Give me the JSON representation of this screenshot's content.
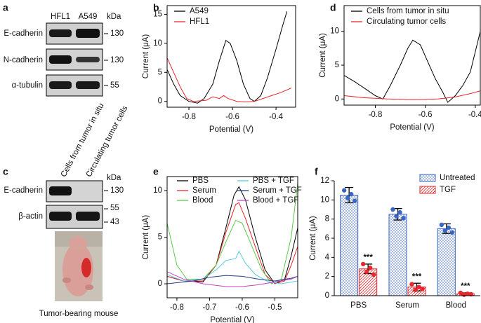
{
  "panel_labels": [
    "a",
    "b",
    "c",
    "d",
    "e",
    "f"
  ],
  "blot_a": {
    "lanes": [
      "HFL1",
      "A549"
    ],
    "unit": "kDa",
    "rows": [
      {
        "label": "E-cadherin",
        "kda": "130"
      },
      {
        "label": "N-cadherin",
        "kda": "130"
      },
      {
        "label": "α-tubulin",
        "kda": "55"
      }
    ]
  },
  "blot_c": {
    "lanes": [
      "Cells from tumor in situ",
      "Circulating tumor cells"
    ],
    "unit": "kDa",
    "rows": [
      {
        "label": "E-cadherin",
        "kda": [
          "130"
        ]
      },
      {
        "label": "β-actin",
        "kda": [
          "55",
          "43"
        ]
      }
    ],
    "caption": "Tumor-bearing mouse"
  },
  "chart_data": [
    {
      "type": "line",
      "x_label": "Potential (V)",
      "y_label": "Current (μA)",
      "xlim": [
        -0.9,
        -0.31
      ],
      "xticks": [
        -0.8,
        -0.6,
        -0.4
      ],
      "ylim": [
        -1,
        16.5
      ],
      "yticks": [
        0,
        5,
        10,
        15
      ],
      "legend": "top-left",
      "series": [
        {
          "name": "A549",
          "color": "#000000",
          "x": [
            -0.9,
            -0.87,
            -0.84,
            -0.8,
            -0.76,
            -0.73,
            -0.69,
            -0.66,
            -0.63,
            -0.61,
            -0.58,
            -0.55,
            -0.52,
            -0.5,
            -0.47,
            -0.44,
            -0.4,
            -0.37,
            -0.35
          ],
          "values": [
            5.5,
            3,
            1,
            0,
            -0.3,
            0.5,
            3,
            7,
            10.5,
            10,
            7,
            3,
            0.5,
            0,
            1,
            4,
            9,
            13,
            15.5
          ]
        },
        {
          "name": "HFL1",
          "color": "#e8262b",
          "x": [
            -0.9,
            -0.87,
            -0.84,
            -0.81,
            -0.78,
            -0.72,
            -0.69,
            -0.66,
            -0.64,
            -0.62,
            -0.58,
            -0.54,
            -0.5,
            -0.46,
            -0.42,
            -0.38,
            -0.33
          ],
          "values": [
            7.5,
            5,
            2.5,
            0.5,
            0,
            0.2,
            0.8,
            0.5,
            1,
            0.5,
            0,
            -0.1,
            0,
            0.5,
            1,
            1.5,
            2.3
          ]
        }
      ]
    },
    {
      "type": "line",
      "x_label": "Potential (V)",
      "y_label": "Current (μA)",
      "xlim": [
        -0.925,
        -0.38
      ],
      "xticks": [
        -0.8,
        -0.6,
        -0.4
      ],
      "ylim": [
        -0.9,
        13.8
      ],
      "yticks": [
        0,
        5,
        10
      ],
      "legend": "top-left",
      "series": [
        {
          "name": "Cells from tumor in situ",
          "color": "#000000",
          "x": [
            -0.925,
            -0.88,
            -0.84,
            -0.8,
            -0.77,
            -0.74,
            -0.7,
            -0.67,
            -0.65,
            -0.62,
            -0.59,
            -0.56,
            -0.53,
            -0.51,
            -0.48,
            -0.45,
            -0.42,
            -0.4,
            -0.38
          ],
          "values": [
            3.5,
            2.5,
            1.5,
            0.5,
            0,
            2,
            5,
            7.5,
            8.7,
            8,
            5.5,
            3,
            1,
            -0.5,
            0.5,
            2,
            4,
            7,
            10
          ]
        },
        {
          "name": "Circulating tumor cells",
          "color": "#e8262b",
          "x": [
            -0.925,
            -0.85,
            -0.75,
            -0.65,
            -0.55,
            -0.48,
            -0.42,
            -0.38
          ],
          "values": [
            0.5,
            0.2,
            0,
            -0.1,
            0,
            0.3,
            0.8,
            1.2
          ]
        }
      ]
    },
    {
      "type": "line",
      "x_label": "Potential (V)",
      "y_label": "Current (μA)",
      "xlim": [
        -0.83,
        -0.43
      ],
      "xticks": [
        -0.8,
        -0.7,
        -0.6,
        -0.5
      ],
      "ylim": [
        -1.5,
        11.5
      ],
      "yticks": [
        0,
        5,
        10
      ],
      "legend": "top-two-columns",
      "series": [
        {
          "name": "PBS",
          "color": "#000000",
          "x": [
            -0.83,
            -0.78,
            -0.72,
            -0.68,
            -0.65,
            -0.625,
            -0.61,
            -0.59,
            -0.56,
            -0.53,
            -0.5,
            -0.47,
            -0.45,
            -0.43
          ],
          "values": [
            0.8,
            0.3,
            0.2,
            2,
            6,
            9.5,
            10.4,
            9,
            5,
            1.5,
            0,
            0.5,
            3,
            6
          ]
        },
        {
          "name": "Serum",
          "color": "#e8262b",
          "x": [
            -0.83,
            -0.78,
            -0.72,
            -0.68,
            -0.65,
            -0.62,
            -0.61,
            -0.59,
            -0.56,
            -0.53,
            -0.5,
            -0.47,
            -0.45,
            -0.43
          ],
          "values": [
            0.8,
            0.3,
            0.3,
            2,
            5.5,
            8.5,
            8.7,
            7,
            4,
            1,
            0,
            0.3,
            2,
            4
          ]
        },
        {
          "name": "Blood",
          "color": "#5cc84a",
          "x": [
            -0.83,
            -0.8,
            -0.77,
            -0.72,
            -0.68,
            -0.65,
            -0.62,
            -0.6,
            -0.57,
            -0.54,
            -0.51,
            -0.48,
            -0.45,
            -0.43
          ],
          "values": [
            6.5,
            2,
            0.5,
            0.5,
            2,
            4.5,
            6.8,
            6.5,
            4,
            1.5,
            0,
            0.5,
            5,
            10.8
          ]
        },
        {
          "name": "PBS + TGF",
          "color": "#5bc8e0",
          "x": [
            -0.83,
            -0.78,
            -0.72,
            -0.68,
            -0.65,
            -0.62,
            -0.61,
            -0.59,
            -0.56,
            -0.52,
            -0.48,
            -0.43
          ],
          "values": [
            1,
            0.3,
            0.5,
            1.5,
            2.5,
            2.7,
            3.5,
            2.2,
            1,
            0.2,
            0,
            0.3
          ]
        },
        {
          "name": "Serum + TGF",
          "color": "#233c8c",
          "x": [
            -0.83,
            -0.75,
            -0.7,
            -0.65,
            -0.6,
            -0.55,
            -0.5,
            -0.45,
            -0.43
          ],
          "values": [
            0,
            0.3,
            0.7,
            0.9,
            0.8,
            0.5,
            0.3,
            0.6,
            0.8
          ]
        },
        {
          "name": "Blood + TGF",
          "color": "#c043c0",
          "x": [
            -0.83,
            -0.78,
            -0.72,
            -0.65,
            -0.6,
            -0.55,
            -0.5,
            -0.45,
            -0.43
          ],
          "values": [
            1.3,
            0.5,
            0,
            -0.3,
            -0.3,
            -0.1,
            0.2,
            0.5,
            0.8
          ]
        }
      ]
    },
    {
      "type": "bar",
      "y_label": "Current (μA)",
      "categories": [
        "PBS",
        "Serum",
        "Blood"
      ],
      "ylim": [
        0,
        12
      ],
      "yticks": [
        0,
        2,
        4,
        6,
        8,
        10,
        12
      ],
      "legend": "top-right",
      "series": [
        {
          "name": "Untreated",
          "color": "#3a66c0",
          "values": [
            10.5,
            8.5,
            7.0
          ],
          "errors": [
            0.8,
            0.6,
            0.5
          ],
          "points": [
            [
              11.0,
              10.2,
              10.6,
              9.9
            ],
            [
              9.0,
              8.3,
              8.7,
              8.1
            ],
            [
              7.4,
              6.8,
              7.1,
              6.6
            ]
          ]
        },
        {
          "name": "TGF",
          "color": "#e8262b",
          "values": [
            2.8,
            0.9,
            0.2
          ],
          "errors": [
            0.5,
            0.4,
            0.1
          ],
          "points": [
            [
              3.3,
              2.5,
              2.9,
              2.2
            ],
            [
              1.2,
              0.6,
              0.9,
              0.7
            ],
            [
              0.3,
              0.1,
              0.2,
              0.15
            ]
          ]
        }
      ],
      "annotations": [
        "***",
        "***",
        "***"
      ]
    }
  ]
}
